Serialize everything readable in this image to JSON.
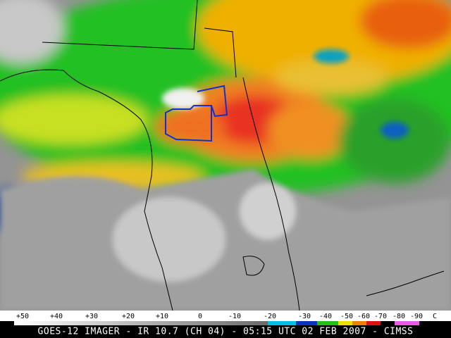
{
  "colorbar": {
    "labels": [
      "+50",
      "+40",
      "+30",
      "+20",
      "+10",
      "0",
      "-10",
      "-20",
      "-30",
      "-40",
      "-50",
      "-60",
      "-70",
      "-80",
      "-90"
    ],
    "unit": "C"
  },
  "caption": "GOES-12 IMAGER - IR 10.7 (CH 04) - 05:15 UTC 02 FEB 2007 - CIMSS"
}
